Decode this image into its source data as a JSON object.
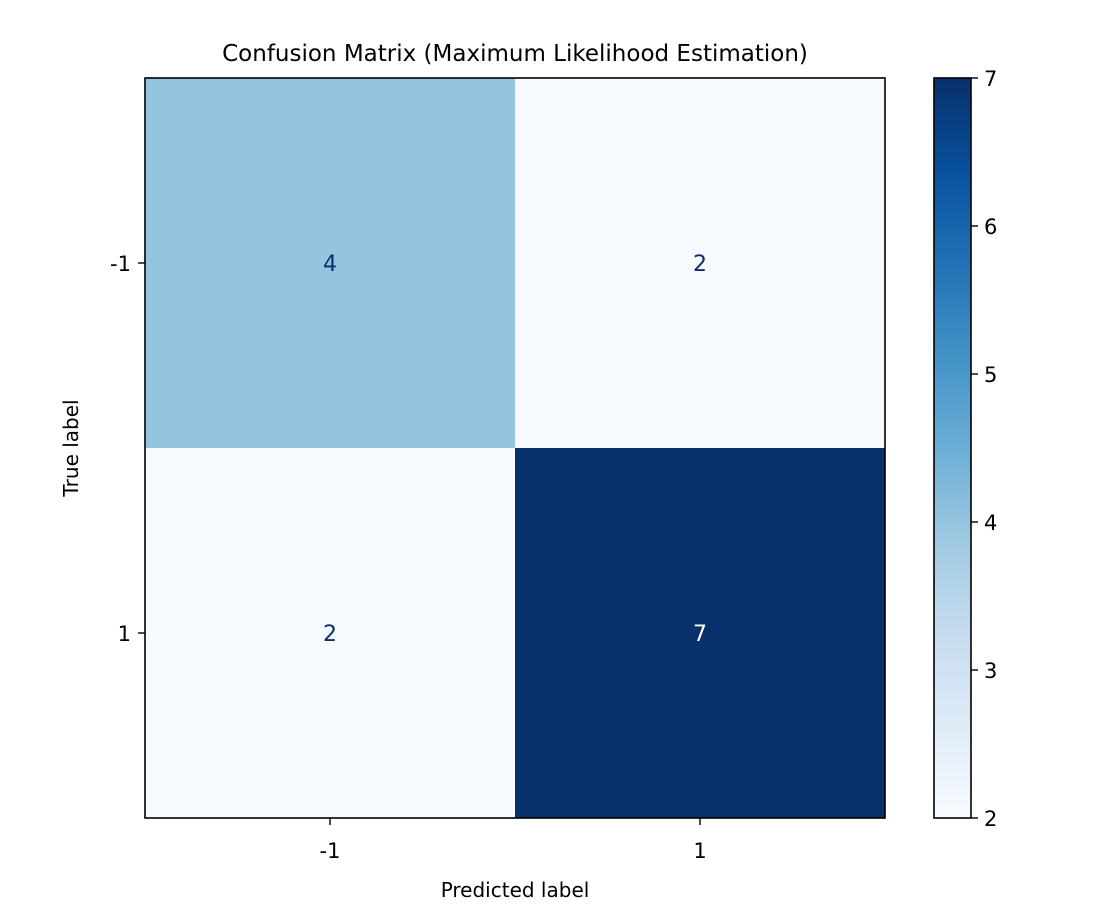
{
  "chart_data": {
    "type": "heatmap",
    "title": "Confusion Matrix (Maximum Likelihood Estimation)",
    "xlabel": "Predicted label",
    "ylabel": "True label",
    "x_categories": [
      "-1",
      "1"
    ],
    "y_categories": [
      "-1",
      "1"
    ],
    "values": [
      [
        4,
        2
      ],
      [
        2,
        7
      ]
    ],
    "colormap": "Blues",
    "color_range": [
      2,
      7
    ],
    "colorbar_ticks": [
      "2",
      "3",
      "4",
      "5",
      "6",
      "7"
    ],
    "cell_text_dark_color": "#08306b",
    "cell_text_light_color": "#ffffff"
  }
}
